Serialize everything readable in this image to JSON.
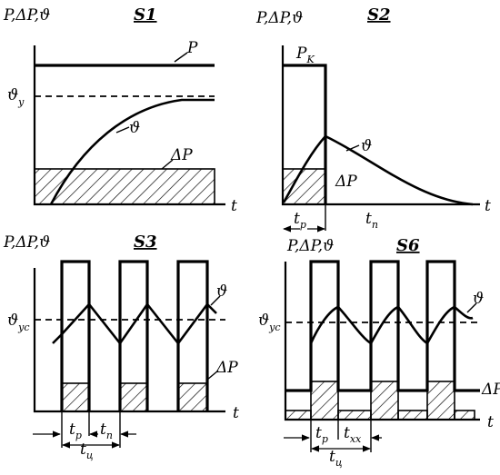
{
  "panels": {
    "s1": {
      "title": "S1",
      "yaxis": "P,ΔP,ϑ",
      "xaxis": "t",
      "label_p": "P",
      "label_theta_y": "ϑ",
      "label_theta_y_sub": "y",
      "label_theta": "ϑ",
      "label_dp": "ΔP"
    },
    "s2": {
      "title": "S2",
      "yaxis": "P,ΔP,ϑ",
      "xaxis": "t",
      "label_pk": "P",
      "label_pk_sub": "K",
      "label_theta": "ϑ",
      "label_dp": "ΔP",
      "label_tp": "t",
      "label_tp_sub": "p",
      "label_tn": "t",
      "label_tn_sub": "n"
    },
    "s3": {
      "title": "S3",
      "yaxis": "P,ΔP,ϑ",
      "xaxis": "t",
      "label_theta_yc": "ϑ",
      "label_theta_yc_sub": "yc",
      "label_theta": "ϑ",
      "label_dp": "ΔP",
      "label_tp": "t",
      "label_tp_sub": "p",
      "label_tn": "t",
      "label_tn_sub": "n",
      "label_tc": "t",
      "label_tc_sub": "ц"
    },
    "s6": {
      "title": "S6",
      "yaxis": "P,ΔP,ϑ",
      "xaxis": "t",
      "label_theta_yc": "ϑ",
      "label_theta_yc_sub": "yc",
      "label_theta": "ϑ",
      "label_dp": "ΔP",
      "label_tp": "t",
      "label_tp_sub": "p",
      "label_txx": "t",
      "label_txx_sub": "xx",
      "label_tc": "t",
      "label_tc_sub": "ц"
    }
  }
}
